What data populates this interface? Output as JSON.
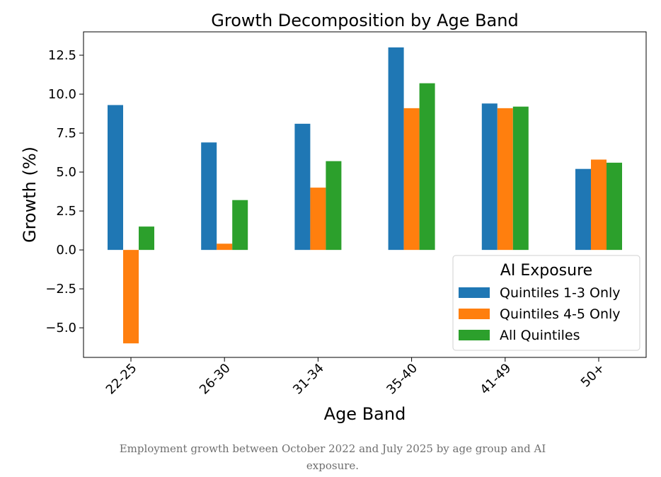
{
  "chart_data": {
    "type": "bar",
    "title": "Growth Decomposition by Age Band",
    "xlabel": "Age Band",
    "ylabel": "Growth (%)",
    "categories": [
      "22-25",
      "26-30",
      "31-34",
      "35-40",
      "41-49",
      "50+"
    ],
    "series": [
      {
        "name": "Quintiles 1-3 Only",
        "color": "#1f77b4",
        "values": [
          9.3,
          6.9,
          8.1,
          13.0,
          9.4,
          5.2
        ]
      },
      {
        "name": "Quintiles 4-5 Only",
        "color": "#ff7f0e",
        "values": [
          -6.0,
          0.4,
          4.0,
          9.1,
          9.1,
          5.8
        ]
      },
      {
        "name": "All Quintiles",
        "color": "#2ca02c",
        "values": [
          1.5,
          3.2,
          5.7,
          10.7,
          9.2,
          5.6
        ]
      }
    ],
    "ylim": [
      -6.9,
      14.0
    ],
    "yticks": [
      -5.0,
      -2.5,
      0.0,
      2.5,
      5.0,
      7.5,
      10.0,
      12.5
    ],
    "ytick_labels": [
      "−5.0",
      "−2.5",
      "0.0",
      "2.5",
      "5.0",
      "7.5",
      "10.0",
      "12.5"
    ],
    "legend_title": "AI Exposure",
    "legend_position": "lower-right",
    "grid": false
  },
  "caption": "Employment growth between October 2022 and July 2025 by age group and AI exposure."
}
